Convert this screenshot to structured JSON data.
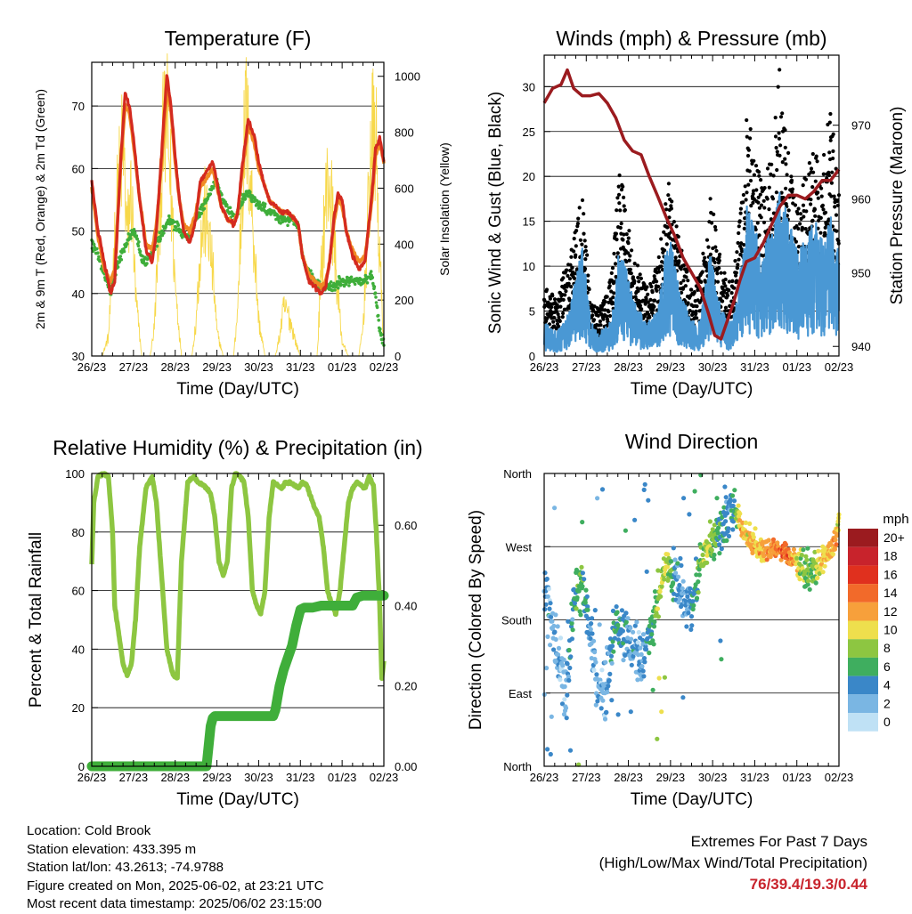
{
  "colors": {
    "temp_red": "#d42a1f",
    "temp_orange": "#f08a24",
    "dew_green": "#3fae3a",
    "solar_yellow": "#f7d84a",
    "gust_black": "#000000",
    "wind_blue": "#4a98d4",
    "pressure_maroon": "#9b1b1f",
    "rh_lightgreen": "#8dc641",
    "precip_green": "#3fae3a",
    "extremes_red": "#c8232c"
  },
  "info": {
    "location": "Location: Cold Brook",
    "elevation": "Station elevation: 433.395 m",
    "latlon": "Station lat/lon: 43.2613; -74.9788",
    "created": "Figure created on Mon, 2025-06-02, at 23:21 UTC",
    "timestamp": "Most recent data timestamp: 2025/06/02 23:15:00"
  },
  "extremes": {
    "title": "Extremes For Past 7 Days",
    "subtitle": "(High/Low/Max Wind/Total Precipitation)",
    "values": "76/39.4/19.3/0.44"
  },
  "chart_data": [
    {
      "id": "temperature",
      "type": "line",
      "title": "Temperature (F)",
      "xlabel": "Time (Day/UTC)",
      "ylabel": "2m & 9m T (Red, Orange) & 2m Td (Green)",
      "ylabel_right": "Solar Insolation (Yellow)",
      "xlim": [
        0,
        7
      ],
      "ylim": [
        30,
        77
      ],
      "ylim_right": [
        0,
        1050
      ],
      "x_ticks": [
        "26/23",
        "27/23",
        "28/23",
        "29/23",
        "30/23",
        "31/23",
        "01/23",
        "02/23"
      ],
      "y_ticks": [
        30,
        40,
        50,
        60,
        70
      ],
      "y_ticks_right": [
        0,
        200,
        400,
        600,
        800,
        1000
      ],
      "grid": true,
      "series": [
        {
          "key": "t2m",
          "x": [
            0,
            0.15,
            0.3,
            0.45,
            0.55,
            0.7,
            0.8,
            0.9,
            1.0,
            1.15,
            1.3,
            1.45,
            1.55,
            1.7,
            1.8,
            1.9,
            2.0,
            2.1,
            2.2,
            2.35,
            2.5,
            2.6,
            2.8,
            2.9,
            3.0,
            3.1,
            3.25,
            3.4,
            3.5,
            3.6,
            3.75,
            3.9,
            4.0,
            4.15,
            4.25,
            4.4,
            4.55,
            4.7,
            4.85,
            4.95,
            5.05,
            5.2,
            5.35,
            5.5,
            5.6,
            5.7,
            5.8,
            5.9,
            6.0,
            6.1,
            6.25,
            6.4,
            6.55,
            6.7,
            6.8,
            6.9,
            7.0
          ],
          "y": [
            58,
            50,
            45,
            40,
            42,
            62,
            72,
            70,
            65,
            55,
            47,
            45,
            50,
            65,
            75,
            70,
            62,
            55,
            50,
            48,
            52,
            58,
            60,
            61,
            58,
            54,
            52,
            51,
            53,
            60,
            68,
            65,
            61,
            57,
            55,
            54,
            53,
            53,
            52,
            51,
            46,
            42,
            41,
            40,
            41,
            45,
            52,
            56,
            55,
            50,
            46,
            44,
            45,
            55,
            63,
            65,
            61
          ]
        },
        {
          "key": "t9m",
          "x": [
            0,
            0.15,
            0.3,
            0.45,
            0.55,
            0.7,
            0.8,
            0.9,
            1.0,
            1.15,
            1.3,
            1.45,
            1.55,
            1.7,
            1.8,
            1.9,
            2.0,
            2.1,
            2.2,
            2.35,
            2.5,
            2.6,
            2.8,
            2.9,
            3.0,
            3.1,
            3.25,
            3.4,
            3.5,
            3.6,
            3.75,
            3.9,
            4.0,
            4.15,
            4.25,
            4.4,
            4.55,
            4.7,
            4.85,
            4.95,
            5.05,
            5.2,
            5.35,
            5.5,
            5.6,
            5.7,
            5.8,
            5.9,
            6.0,
            6.1,
            6.25,
            6.4,
            6.55,
            6.7,
            6.8,
            6.9,
            7.0
          ],
          "y": [
            57,
            49,
            44,
            42,
            44,
            61,
            70,
            69,
            64,
            55,
            48,
            47,
            51,
            63,
            73,
            69,
            61,
            55,
            51,
            50,
            53,
            57,
            59,
            60,
            57,
            54,
            52,
            51,
            53,
            59,
            67,
            64,
            60,
            57,
            55,
            54,
            53,
            53,
            52,
            51,
            46,
            43,
            42,
            41,
            42,
            45,
            51,
            55,
            54,
            50,
            47,
            45,
            46,
            54,
            62,
            64,
            61
          ]
        },
        {
          "key": "td2m",
          "x": [
            0,
            0.15,
            0.3,
            0.45,
            0.6,
            0.75,
            0.9,
            1.0,
            1.1,
            1.25,
            1.4,
            1.55,
            1.7,
            1.85,
            2.0,
            2.15,
            2.3,
            2.45,
            2.6,
            2.75,
            2.9,
            3.0,
            3.15,
            3.3,
            3.45,
            3.6,
            3.75,
            3.9,
            4.05,
            4.2,
            4.35,
            4.5,
            4.65,
            4.8,
            4.95,
            5.05,
            5.2,
            5.35,
            5.5,
            5.65,
            5.8,
            5.95,
            6.1,
            6.25,
            6.4,
            6.55,
            6.7,
            6.8,
            6.9,
            7.0
          ],
          "y": [
            48,
            46,
            43,
            40,
            44,
            47,
            49,
            50,
            48,
            45,
            46,
            48,
            50,
            52,
            51,
            50,
            49,
            51,
            53,
            55,
            57,
            58,
            55,
            53,
            52,
            55,
            56,
            55,
            54,
            53,
            53,
            52,
            52,
            52,
            51,
            46,
            43,
            42,
            41,
            41,
            41,
            42,
            42,
            42,
            42,
            42,
            43,
            40,
            34,
            32
          ]
        },
        {
          "key": "solar",
          "axis": "right",
          "x": [
            0,
            0.25,
            0.4,
            0.5,
            0.6,
            0.75,
            0.85,
            0.95,
            1.05,
            1.2,
            1.4,
            1.5,
            1.6,
            1.7,
            1.8,
            1.9,
            2.0,
            2.15,
            2.4,
            2.5,
            2.6,
            2.7,
            2.8,
            2.9,
            3.0,
            3.15,
            3.4,
            3.5,
            3.6,
            3.7,
            3.8,
            3.9,
            4.0,
            4.15,
            4.4,
            4.5,
            4.6,
            4.7,
            4.8,
            4.9,
            5.0,
            5.15,
            5.4,
            5.5,
            5.6,
            5.7,
            5.8,
            5.9,
            6.0,
            6.15,
            6.4,
            6.5,
            6.6,
            6.7,
            6.8,
            6.9,
            7.0
          ],
          "y": [
            0,
            0,
            80,
            350,
            620,
            900,
            500,
            700,
            250,
            0,
            0,
            120,
            500,
            880,
            980,
            700,
            300,
            0,
            0,
            150,
            450,
            600,
            520,
            350,
            100,
            0,
            0,
            200,
            700,
            1000,
            750,
            450,
            150,
            0,
            0,
            80,
            200,
            180,
            120,
            50,
            0,
            0,
            0,
            350,
            650,
            750,
            500,
            250,
            60,
            0,
            0,
            120,
            500,
            870,
            950,
            400,
            60
          ]
        }
      ]
    },
    {
      "id": "winds",
      "type": "scatter",
      "title": "Winds (mph) & Pressure (mb)",
      "xlabel": "Time (Day/UTC)",
      "ylabel": "Sonic Wind & Gust (Blue, Black)",
      "ylabel_right": "Station Pressure (Maroon)",
      "xlim": [
        0,
        7
      ],
      "ylim": [
        0,
        33.5
      ],
      "ylim_right": [
        938.7,
        979.5
      ],
      "x_ticks": [
        "26/23",
        "27/23",
        "28/23",
        "29/23",
        "30/23",
        "31/23",
        "01/23",
        "02/23"
      ],
      "y_ticks": [
        0,
        5,
        10,
        15,
        20,
        25,
        30
      ],
      "y_ticks_right": [
        940,
        950,
        960,
        970
      ],
      "grid": true,
      "envelope": {
        "x": [
          0,
          0.3,
          0.6,
          0.9,
          1.1,
          1.3,
          1.6,
          1.8,
          2.1,
          2.4,
          2.7,
          2.95,
          3.2,
          3.5,
          3.7,
          3.95,
          4.2,
          4.45,
          4.6,
          4.8,
          5.0,
          5.2,
          5.4,
          5.6,
          5.8,
          6.0,
          6.2,
          6.4,
          6.6,
          6.8,
          7.0
        ],
        "wind": [
          3,
          2,
          4,
          10,
          3,
          2,
          3,
          10,
          5,
          3,
          4,
          11,
          6,
          3,
          3,
          9,
          4,
          3,
          5,
          13,
          11,
          9,
          12,
          15,
          12,
          9,
          10,
          12,
          10,
          12,
          9
        ],
        "gust": [
          6,
          5,
          9,
          14,
          5,
          4,
          7,
          17,
          9,
          6,
          8,
          15,
          10,
          6,
          7,
          14,
          8,
          6,
          10,
          22,
          17,
          15,
          18,
          25,
          18,
          13,
          16,
          18,
          16,
          22,
          15
        ]
      },
      "pressure": {
        "x": [
          0,
          0.2,
          0.4,
          0.55,
          0.7,
          0.9,
          1.1,
          1.3,
          1.5,
          1.7,
          1.9,
          2.1,
          2.3,
          2.5,
          2.7,
          2.9,
          3.1,
          3.3,
          3.5,
          3.7,
          3.9,
          4.05,
          4.2,
          4.35,
          4.5,
          4.65,
          4.8,
          5.0,
          5.2,
          5.4,
          5.6,
          5.8,
          6.0,
          6.2,
          6.4,
          6.6,
          6.8,
          7.0
        ],
        "y": [
          973,
          975,
          975.5,
          977.5,
          975,
          974,
          974,
          974.3,
          973,
          971,
          968,
          966.5,
          966,
          963,
          960.3,
          957.5,
          955,
          952,
          950,
          948,
          944.5,
          941.5,
          941,
          943.5,
          946,
          949,
          951.5,
          952,
          954,
          956.5,
          959,
          960.5,
          960.5,
          960,
          961,
          962.5,
          962.5,
          964
        ]
      }
    },
    {
      "id": "humidity",
      "type": "line",
      "title": "Relative Humidity (%) & Precipitation (in)",
      "xlabel": "Time (Day/UTC)",
      "ylabel": "Percent & Total Rainfall",
      "xlim": [
        0,
        7
      ],
      "ylim": [
        0,
        100
      ],
      "ylim_right": [
        0,
        0.729
      ],
      "x_ticks": [
        "26/23",
        "27/23",
        "28/23",
        "29/23",
        "30/23",
        "31/23",
        "01/23",
        "02/23"
      ],
      "y_ticks": [
        0,
        20,
        40,
        60,
        80,
        100
      ],
      "y_ticks_right": [
        "0.00",
        "0.20",
        "0.40",
        "0.60"
      ],
      "grid": true,
      "series": [
        {
          "key": "rh",
          "x": [
            0,
            0.05,
            0.15,
            0.3,
            0.4,
            0.5,
            0.55,
            0.65,
            0.75,
            0.85,
            0.95,
            1.05,
            1.15,
            1.3,
            1.45,
            1.55,
            1.65,
            1.8,
            1.95,
            2.05,
            2.15,
            2.3,
            2.45,
            2.55,
            2.7,
            2.85,
            2.95,
            3.05,
            3.15,
            3.25,
            3.35,
            3.45,
            3.55,
            3.65,
            3.75,
            3.85,
            3.95,
            4.05,
            4.15,
            4.25,
            4.35,
            4.45,
            4.55,
            4.65,
            4.75,
            4.85,
            4.95,
            5.05,
            5.15,
            5.25,
            5.35,
            5.45,
            5.55,
            5.65,
            5.75,
            5.85,
            5.95,
            6.05,
            6.15,
            6.25,
            6.35,
            6.45,
            6.55,
            6.65,
            6.75,
            6.82,
            6.9,
            6.95,
            7.0
          ],
          "y": [
            69,
            90,
            99,
            100,
            99,
            80,
            55,
            45,
            35,
            31,
            35,
            50,
            75,
            95,
            99,
            90,
            70,
            40,
            31,
            30,
            70,
            97,
            99,
            97,
            96,
            93,
            85,
            70,
            65,
            70,
            95,
            100,
            99,
            97,
            85,
            60,
            55,
            52,
            60,
            85,
            97,
            96,
            95,
            97,
            97,
            96,
            95,
            97,
            96,
            92,
            88,
            85,
            75,
            60,
            55,
            52,
            60,
            75,
            90,
            95,
            97,
            96,
            95,
            99,
            96,
            80,
            55,
            30,
            36
          ]
        },
        {
          "key": "precip",
          "axis": "right",
          "x": [
            0,
            2.75,
            2.8,
            2.85,
            2.9,
            2.95,
            3.0,
            4.35,
            4.4,
            4.45,
            4.5,
            4.55,
            4.6,
            4.7,
            4.8,
            4.9,
            5.0,
            5.1,
            5.3,
            5.5,
            5.7,
            5.9,
            6.1,
            6.25,
            6.3,
            6.35,
            6.5,
            6.7,
            7.0
          ],
          "y": [
            0,
            0,
            0.05,
            0.1,
            0.12,
            0.125,
            0.125,
            0.125,
            0.14,
            0.17,
            0.2,
            0.22,
            0.24,
            0.27,
            0.3,
            0.35,
            0.39,
            0.395,
            0.395,
            0.4,
            0.4,
            0.4,
            0.4,
            0.4,
            0.41,
            0.42,
            0.425,
            0.425,
            0.425
          ]
        }
      ]
    },
    {
      "id": "direction",
      "type": "scatter",
      "title": "Wind Direction",
      "xlabel": "Time (Day/UTC)",
      "ylabel": "Direction (Colored By Speed)",
      "xlim": [
        0,
        7
      ],
      "ylim": [
        0,
        360
      ],
      "x_ticks": [
        "26/23",
        "27/23",
        "28/23",
        "29/23",
        "30/23",
        "31/23",
        "01/23",
        "02/23"
      ],
      "y_ticks": [
        "North",
        "East",
        "South",
        "West",
        "North"
      ],
      "grid": true,
      "legend_title": "mph",
      "legend_labels": [
        "20+",
        "18",
        "16",
        "14",
        "12",
        "10",
        "8",
        "6",
        "4",
        "2",
        "0"
      ],
      "legend_colors": [
        "#9b1b1f",
        "#c8232c",
        "#e0301e",
        "#f26a2a",
        "#f7a03b",
        "#eedf4d",
        "#8dc641",
        "#3fae5f",
        "#3a87c8",
        "#7ab6e3",
        "#bfe1f5"
      ],
      "legend_placement": "right",
      "bands": {
        "x": [
          0,
          0.3,
          0.5,
          0.7,
          0.9,
          1.1,
          1.3,
          1.5,
          1.7,
          1.9,
          2.1,
          2.3,
          2.5,
          2.7,
          2.9,
          3.1,
          3.3,
          3.5,
          3.7,
          3.9,
          4.1,
          4.3,
          4.5,
          4.7,
          4.9,
          5.1,
          5.3,
          5.5,
          5.7,
          5.9,
          6.1,
          6.3,
          6.5,
          6.7,
          6.9,
          7.0
        ],
        "dir": [
          210,
          150,
          80,
          200,
          230,
          170,
          90,
          100,
          180,
          160,
          150,
          140,
          160,
          200,
          250,
          230,
          200,
          190,
          250,
          270,
          290,
          300,
          320,
          290,
          280,
          270,
          265,
          270,
          262,
          255,
          245,
          240,
          245,
          260,
          270,
          300
        ],
        "speed": [
          3,
          2,
          2,
          5,
          7,
          3,
          2,
          2,
          6,
          4,
          3,
          3,
          5,
          8,
          9,
          4,
          3,
          4,
          7,
          9,
          6,
          4,
          5,
          12,
          11,
          11,
          12,
          13,
          14,
          12,
          8,
          7,
          9,
          11,
          12,
          10
        ]
      }
    }
  ]
}
